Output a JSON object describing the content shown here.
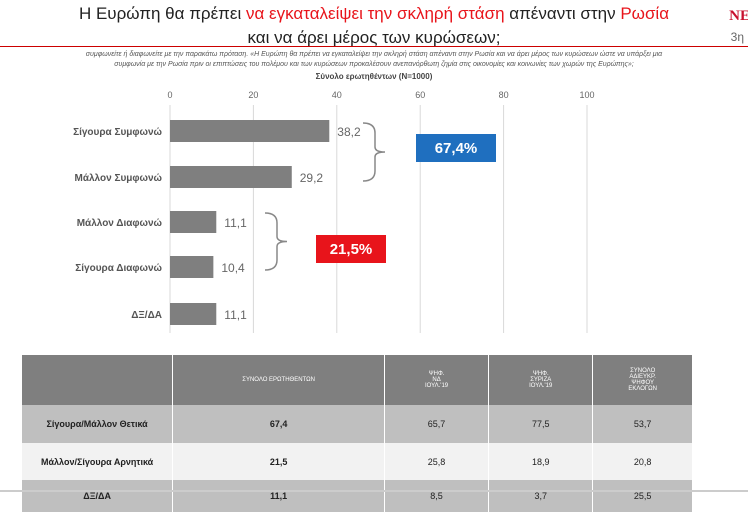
{
  "header": {
    "title_a": "Η Ευρώπη θα πρέπει ",
    "title_b": "να εγκαταλείψει την σκληρή στάση",
    "title_c": " απέναντι στην ",
    "title_d": "Ρωσία",
    "title_line2": "και να άρει μέρος των κυρώσεων;",
    "logo": "ΝΕ",
    "wave": "3η"
  },
  "question": {
    "line1": "συμφωνείτε ή διαφωνείτε με την παρακάτω πρόταση. «Η Ευρώπη θα πρέπει να εγκαταλείψει την σκληρή στάση απέναντι στην Ρωσία και να άρει μέρος των κυρώσεων ώστε να υπάρξει μια",
    "line2": "συμφωνία με την Ρωσία πριν οι επιπτώσεις του πολέμου και των κυρώσεων προκαλέσουν ανεπανόρθωτη ζημία στις οικονομίες και κοινωνίες των χωρών της Ευρώπης»;"
  },
  "chart_data": {
    "type": "bar",
    "orientation": "horizontal",
    "title": "Σύνολο ερωτηθέντων (N=1000)",
    "categories": [
      "Σίγουρα Συμφωνώ",
      "Μάλλον Συμφωνώ",
      "Μάλλον Διαφωνώ",
      "Σίγουρα Διαφωνώ",
      "ΔΞ/ΔΑ"
    ],
    "values": [
      38.2,
      29.2,
      11.1,
      10.4,
      11.1
    ],
    "value_labels": [
      "38,2",
      "29,2",
      "11,1",
      "10,4",
      "11,1"
    ],
    "xlim": [
      0,
      100
    ],
    "xticks": [
      "0",
      "20",
      "40",
      "60",
      "80",
      "100"
    ],
    "bar_color": "#7f7f7f",
    "annotations": [
      {
        "text": "67,4%",
        "groups": [
          0,
          1
        ],
        "color": "#1f6fbf"
      },
      {
        "text": "21,5%",
        "groups": [
          2,
          3
        ],
        "color": "#e8141b"
      }
    ]
  },
  "table": {
    "headers": [
      "",
      "ΣΥΝΟΛΟ ΕΡΩΤΗΘΕΝΤΩΝ",
      "ΨΗΦ. ΝΔ ΙΟΥΛ.'19",
      "ΨΗΦ. ΣΥΡΙΖΑ ΙΟΥΛ.'19",
      "ΣΥΝΟΛΟ ΑΔΙΕΥΚΡ. ΨΗΦΟΥ ΕΚΛΟΓΩΝ"
    ],
    "rows": [
      [
        "Σίγουρα/Μάλλον Θετικά",
        "67,4",
        "65,7",
        "77,5",
        "53,7"
      ],
      [
        "Μάλλον/Σίγουρα Αρνητικά",
        "21,5",
        "25,8",
        "18,9",
        "20,8"
      ],
      [
        "ΔΞ/ΔΑ",
        "11,1",
        "8,5",
        "3,7",
        "25,5"
      ]
    ]
  }
}
